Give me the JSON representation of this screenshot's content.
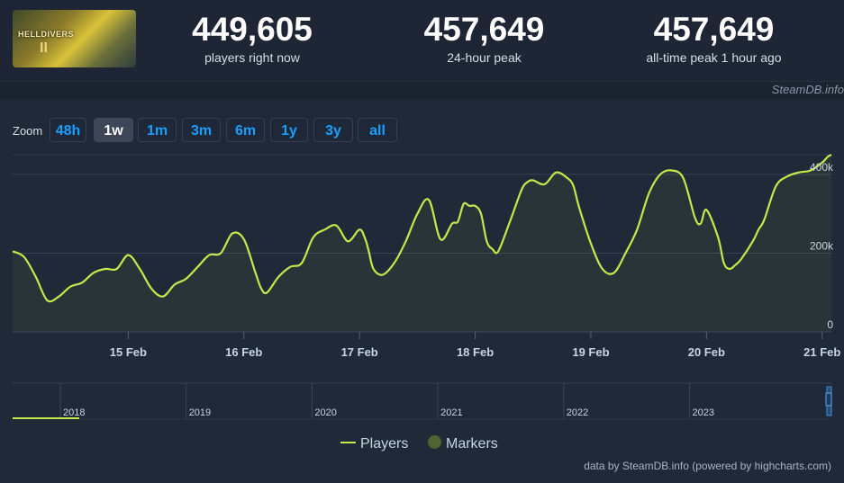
{
  "header": {
    "game_logo_text": "HELLDIVERS",
    "game_logo_mark": "II",
    "stats": [
      {
        "value": "449,605",
        "label": "players right now"
      },
      {
        "value": "457,649",
        "label": "24-hour peak"
      },
      {
        "value": "457,649",
        "label": "all-time peak 1 hour ago"
      }
    ]
  },
  "watermark": "SteamDB.info",
  "zoom": {
    "label": "Zoom",
    "buttons": [
      "48h",
      "1w",
      "1m",
      "3m",
      "6m",
      "1y",
      "3y",
      "all"
    ],
    "active": "1w"
  },
  "legend": {
    "players": "Players",
    "markers": "Markers"
  },
  "credits": "data by SteamDB.info (powered by highcharts.com)",
  "colors": {
    "series": "#c5e84a",
    "markers": "#4e6433",
    "accent": "#1a9fff",
    "background": "#1b2230"
  },
  "chart_data": {
    "type": "line",
    "title": "",
    "xlabel": "",
    "ylabel": "",
    "ylim": [
      0,
      450000
    ],
    "y_ticks": [
      "0",
      "200k",
      "400k"
    ],
    "y_tick_values": [
      0,
      200000,
      400000
    ],
    "x_ticks": [
      "15 Feb",
      "16 Feb",
      "17 Feb",
      "18 Feb",
      "19 Feb",
      "20 Feb",
      "21 Feb"
    ],
    "x_tick_days": [
      15,
      16,
      17,
      18,
      19,
      20,
      21
    ],
    "grid": true,
    "legend_position": "bottom-center",
    "series": [
      {
        "name": "Players",
        "x_days": [
          14.0,
          14.1,
          14.2,
          14.3,
          14.4,
          14.5,
          14.6,
          14.7,
          14.8,
          14.9,
          15.0,
          15.1,
          15.2,
          15.3,
          15.4,
          15.5,
          15.6,
          15.7,
          15.8,
          15.9,
          16.0,
          16.1,
          16.15,
          16.2,
          16.3,
          16.4,
          16.5,
          16.6,
          16.7,
          16.8,
          16.9,
          17.0,
          17.05,
          17.08,
          17.12,
          17.2,
          17.3,
          17.4,
          17.5,
          17.6,
          17.7,
          17.8,
          17.85,
          17.9,
          17.95,
          18.0,
          18.05,
          18.1,
          18.15,
          18.2,
          18.3,
          18.4,
          18.45,
          18.5,
          18.6,
          18.7,
          18.8,
          18.85,
          18.9,
          19.0,
          19.1,
          19.2,
          19.3,
          19.4,
          19.5,
          19.6,
          19.7,
          19.8,
          19.9,
          19.95,
          20.0,
          20.1,
          20.15,
          20.2,
          20.25,
          20.3,
          20.4,
          20.45,
          20.5,
          20.6,
          20.7,
          20.8,
          20.9,
          21.0,
          21.05,
          21.08
        ],
        "y": [
          205000,
          190000,
          140000,
          80000,
          90000,
          115000,
          125000,
          150000,
          160000,
          160000,
          195000,
          160000,
          110000,
          90000,
          120000,
          135000,
          165000,
          195000,
          200000,
          250000,
          235000,
          150000,
          110000,
          100000,
          140000,
          165000,
          175000,
          240000,
          260000,
          270000,
          230000,
          260000,
          235000,
          205000,
          160000,
          145000,
          175000,
          230000,
          300000,
          335000,
          235000,
          275000,
          280000,
          325000,
          320000,
          320000,
          300000,
          230000,
          210000,
          205000,
          280000,
          360000,
          380000,
          385000,
          375000,
          405000,
          390000,
          370000,
          315000,
          225000,
          160000,
          150000,
          200000,
          260000,
          350000,
          400000,
          410000,
          390000,
          290000,
          275000,
          310000,
          240000,
          175000,
          160000,
          170000,
          185000,
          230000,
          260000,
          285000,
          370000,
          395000,
          405000,
          410000,
          430000,
          445000,
          450000
        ]
      }
    ],
    "navigator": {
      "x_labels": [
        "2018",
        "2019",
        "2020",
        "2021",
        "2022",
        "2023"
      ]
    }
  }
}
